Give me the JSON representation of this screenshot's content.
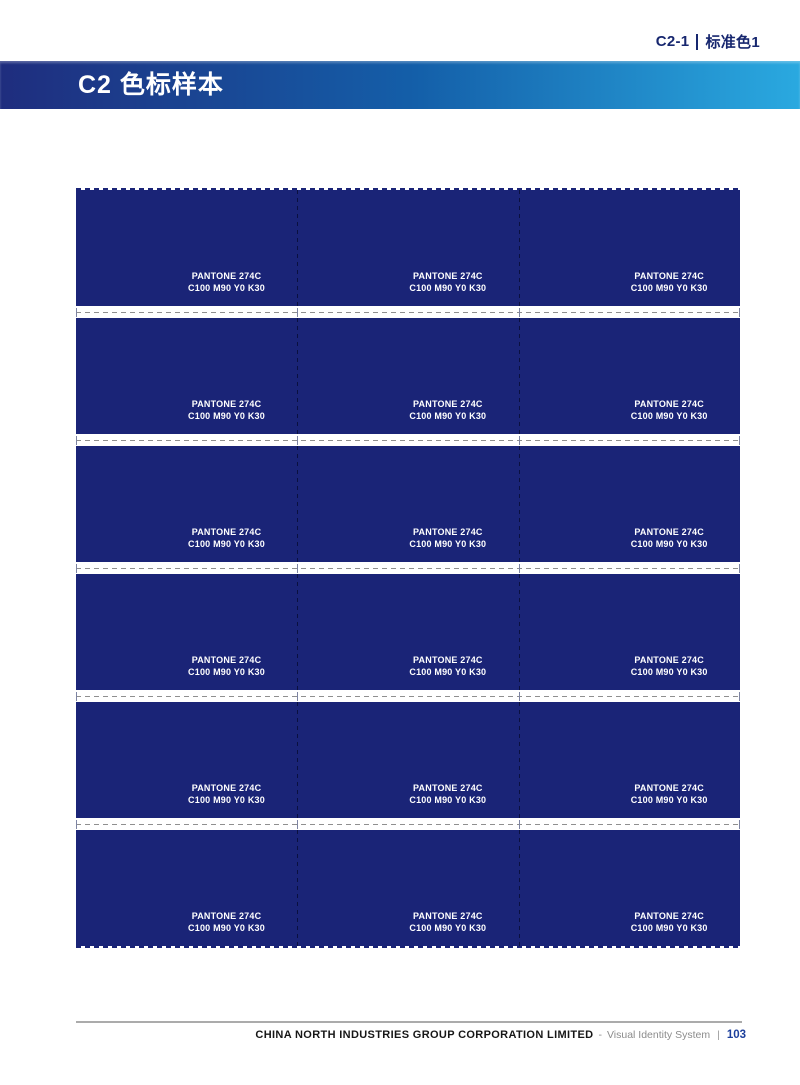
{
  "header": {
    "code": "C2-1",
    "label": "标准色1"
  },
  "title": {
    "text": "C2 色标样本"
  },
  "swatch": {
    "pantone": "PANTONE 274C",
    "cmyk": "C100 M90 Y0 K30",
    "grid_rows": 6,
    "grid_cols": 3
  },
  "footer": {
    "company": "CHINA NORTH INDUSTRIES GROUP CORPORATION LIMITED",
    "dash": "-",
    "system": "Visual Identity System",
    "pipe": "|",
    "page": "103"
  },
  "colors": {
    "swatch": "#1a2477",
    "header_text": "#17276f",
    "bar_gradient_left": "#1f2d7e",
    "bar_gradient_mid": "#145fa9",
    "bar_gradient_right": "#2aa9e0",
    "page_number": "#1c3f9c"
  }
}
